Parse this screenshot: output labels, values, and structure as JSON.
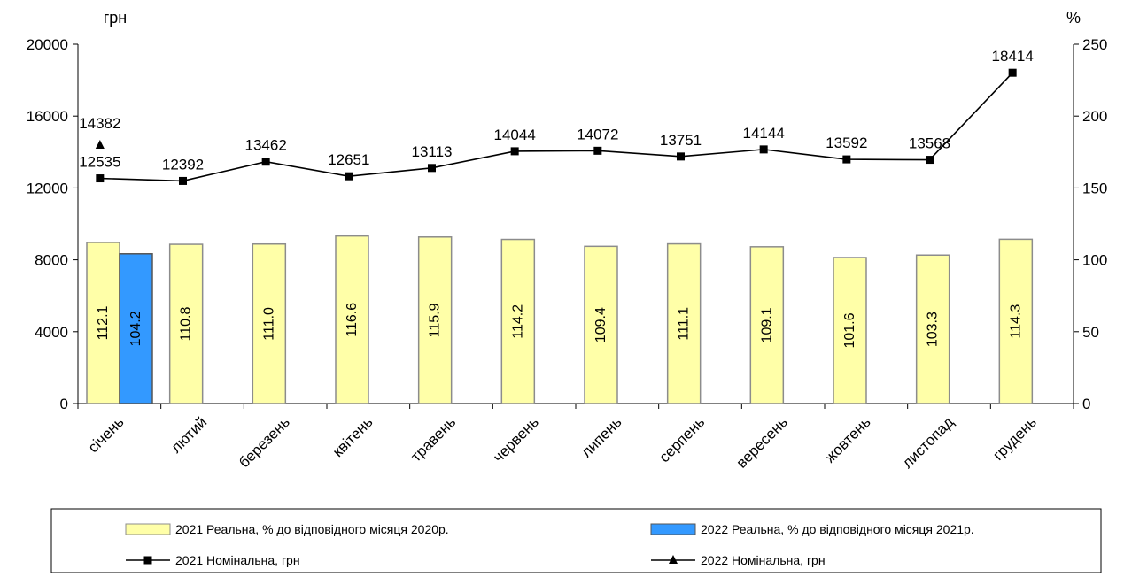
{
  "chart_data": {
    "type": "bar",
    "categories": [
      "січень",
      "лютий",
      "березень",
      "квітень",
      "травень",
      "червень",
      "липень",
      "серпень",
      "вересень",
      "жовтень",
      "листопад",
      "грудень"
    ],
    "series": [
      {
        "name": "2021 Реальна, % до відповідного місяця 2020р.",
        "type": "bar",
        "axis": "right",
        "color": "#FFFFA8",
        "values": [
          112.1,
          110.8,
          111.0,
          116.6,
          115.9,
          114.2,
          109.4,
          111.1,
          109.1,
          101.6,
          103.3,
          114.3
        ],
        "labels": [
          "112.1",
          "110.8",
          "111.0",
          "116.6",
          "115.9",
          "114.2",
          "109.4",
          "111.1",
          "109.1",
          "101.6",
          "103.3",
          "114.3"
        ]
      },
      {
        "name": "2022 Реальна, % до відповідного місяця 2021р.",
        "type": "bar",
        "axis": "right",
        "color": "#3399FF",
        "values": [
          104.2,
          null,
          null,
          null,
          null,
          null,
          null,
          null,
          null,
          null,
          null,
          null
        ],
        "labels": [
          "104.2"
        ]
      },
      {
        "name": "2021 Номінальна, грн",
        "type": "line",
        "axis": "left",
        "marker": "square",
        "color": "#000000",
        "values": [
          12535,
          12392,
          13462,
          12651,
          13113,
          14044,
          14072,
          13751,
          14144,
          13592,
          13568,
          18414
        ],
        "labels": [
          "12535",
          "12392",
          "13462",
          "12651",
          "13113",
          "14044",
          "14072",
          "13751",
          "14144",
          "13592",
          "13568",
          "18414"
        ]
      },
      {
        "name": "2022 Номінальна, грн",
        "type": "line",
        "axis": "left",
        "marker": "triangle",
        "color": "#000000",
        "values": [
          14382,
          null,
          null,
          null,
          null,
          null,
          null,
          null,
          null,
          null,
          null,
          null
        ],
        "labels": [
          "14382"
        ]
      }
    ],
    "left_axis": {
      "label": "грн",
      "range": [
        0,
        20000
      ],
      "ticks": [
        "0",
        "4000",
        "8000",
        "12000",
        "16000",
        "20000"
      ]
    },
    "right_axis": {
      "label": "%",
      "range": [
        0,
        250
      ],
      "ticks": [
        "0",
        "50",
        "100",
        "150",
        "200",
        "250"
      ]
    },
    "grid": false,
    "legend_position": "bottom"
  }
}
